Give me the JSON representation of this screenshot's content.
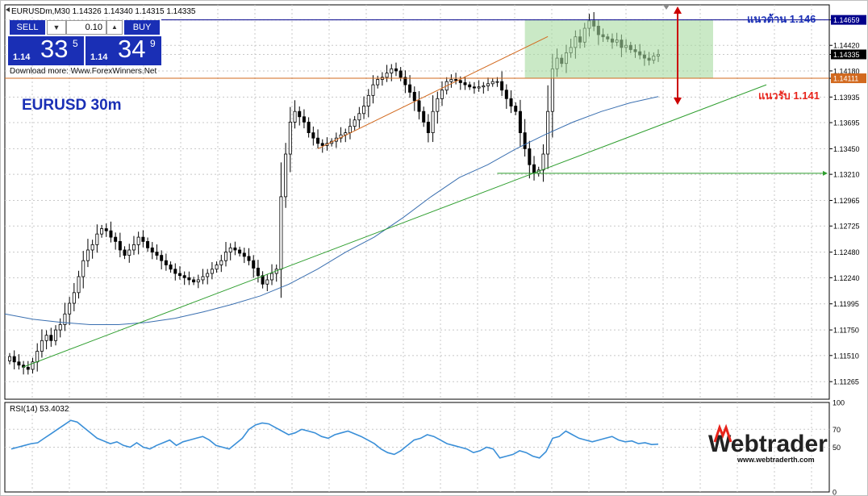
{
  "header": {
    "symbol_info": "EURUSDm,M30  1.14326 1.14340 1.14315 1.14335",
    "chart_title": "EURUSD 30m",
    "download_text": "Download more: Www.ForexWinners.Net"
  },
  "trade_panel": {
    "sell_label": "SELL",
    "buy_label": "BUY",
    "lot_value": "0.10",
    "sell_price": {
      "prefix": "1.14",
      "big": "33",
      "sup": "5"
    },
    "buy_price": {
      "prefix": "1.14",
      "big": "34",
      "sup": "9"
    }
  },
  "annotations": {
    "resistance_label": "แนวต้าน 1.146",
    "support_label": "แนวรับ 1.141"
  },
  "colors": {
    "resistance_line": "#00008b",
    "support_line": "#d2691e",
    "trendline": "#2e9e2e",
    "ma_line": "#3a6fb0",
    "rsi_line": "#3a8fd8",
    "arrow": "#cc0000",
    "zone_fill": "#a6dba0",
    "label_blue": "#1a2fb5",
    "label_red": "#e8231b"
  },
  "logo": {
    "name": "Webtrader",
    "url": "www.webtraderth.com"
  },
  "chart_data": [
    {
      "type": "candlestick",
      "symbol": "EURUSDm",
      "timeframe": "M30",
      "ylim": [
        1.111,
        1.148
      ],
      "y_ticks": [
        "1.14659",
        "1.14420",
        "1.14335",
        "1.14180",
        "1.14111",
        "1.13935",
        "1.13695",
        "1.13450",
        "1.13210",
        "1.12965",
        "1.12725",
        "1.12480",
        "1.12240",
        "1.11995",
        "1.11750",
        "1.11510",
        "1.11265"
      ],
      "price_labels": {
        "current": "1.14335",
        "resistance": "1.14659",
        "support": "1.14111"
      },
      "resistance": 1.14659,
      "support": 1.14111,
      "grid": true,
      "closes": [
        1.115,
        1.1145,
        1.1142,
        1.114,
        1.1138,
        1.1145,
        1.1155,
        1.1165,
        1.117,
        1.1165,
        1.1175,
        1.118,
        1.119,
        1.12,
        1.121,
        1.1225,
        1.124,
        1.125,
        1.1255,
        1.1265,
        1.127,
        1.1268,
        1.1262,
        1.1258,
        1.125,
        1.1245,
        1.125,
        1.1255,
        1.1262,
        1.1258,
        1.1252,
        1.1248,
        1.1245,
        1.124,
        1.1236,
        1.1232,
        1.1228,
        1.1226,
        1.1224,
        1.1222,
        1.122,
        1.1222,
        1.1225,
        1.1228,
        1.1232,
        1.1236,
        1.124,
        1.1248,
        1.1252,
        1.125,
        1.1247,
        1.1244,
        1.124,
        1.1233,
        1.1226,
        1.1218,
        1.1222,
        1.1228,
        1.1232,
        1.13,
        1.134,
        1.137,
        1.138,
        1.1375,
        1.137,
        1.136,
        1.1355,
        1.135,
        1.1348,
        1.135,
        1.1352,
        1.1355,
        1.1358,
        1.136,
        1.1366,
        1.1372,
        1.1378,
        1.1385,
        1.1395,
        1.1405,
        1.141,
        1.1412,
        1.1416,
        1.142,
        1.1418,
        1.1412,
        1.1405,
        1.1398,
        1.139,
        1.138,
        1.137,
        1.136,
        1.138,
        1.1392,
        1.14,
        1.1408,
        1.141,
        1.1409,
        1.1407,
        1.1405,
        1.1403,
        1.1402,
        1.1403,
        1.1404,
        1.1406,
        1.1408,
        1.1408,
        1.14,
        1.1392,
        1.1385,
        1.138,
        1.136,
        1.1345,
        1.133,
        1.1322,
        1.1325,
        1.134,
        1.138,
        1.142,
        1.143,
        1.1425,
        1.1435,
        1.144,
        1.145,
        1.1445,
        1.1458,
        1.1465,
        1.146,
        1.1452,
        1.145,
        1.1448,
        1.1445,
        1.1447,
        1.144,
        1.1442,
        1.1438,
        1.1436,
        1.1433,
        1.143,
        1.1428,
        1.1432,
        1.14335
      ],
      "ma": [
        1.119,
        1.1185,
        1.1182,
        1.118,
        1.118,
        1.1182,
        1.1186,
        1.1192,
        1.1199,
        1.1207,
        1.1218,
        1.1232,
        1.1248,
        1.1262,
        1.128,
        1.13,
        1.1318,
        1.133,
        1.1345,
        1.1358,
        1.137,
        1.138,
        1.1388,
        1.1394
      ],
      "trendline_values": [
        1.114,
        1.1322,
        1.1405
      ],
      "ascending_channel_values": [
        1.1345,
        1.142
      ],
      "horizontal_level": 1.1322
    },
    {
      "type": "line",
      "name": "RSI(14) 53.4032",
      "ylim": [
        0,
        100
      ],
      "y_ticks": [
        "100",
        "70",
        "50",
        "0"
      ],
      "values": [
        48,
        50,
        52,
        54,
        55,
        60,
        65,
        70,
        75,
        80,
        78,
        72,
        66,
        60,
        57,
        54,
        56,
        52,
        50,
        55,
        50,
        48,
        52,
        55,
        58,
        52,
        56,
        58,
        60,
        62,
        58,
        52,
        50,
        48,
        54,
        60,
        70,
        75,
        77,
        76,
        72,
        68,
        64,
        66,
        70,
        68,
        66,
        62,
        60,
        64,
        66,
        68,
        65,
        62,
        58,
        54,
        48,
        44,
        42,
        46,
        52,
        58,
        60,
        64,
        62,
        58,
        54,
        52,
        50,
        48,
        44,
        46,
        50,
        48,
        38,
        40,
        42,
        46,
        44,
        40,
        38,
        45,
        60,
        62,
        68,
        64,
        60,
        58,
        56,
        58,
        60,
        62,
        58,
        56,
        57,
        54,
        55,
        53,
        53.4
      ]
    }
  ]
}
